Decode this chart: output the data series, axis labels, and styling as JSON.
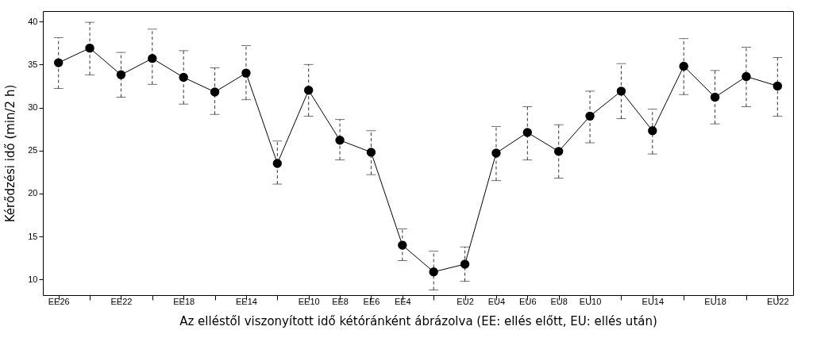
{
  "chart_data": {
    "type": "line",
    "xlabel": "Az elléstől viszonyított idő kétóránként ábrázolva (EE: ellés előtt, EU: ellés után)",
    "ylabel": "Kérődzési idő (min/2 h)",
    "categories": [
      "EE26",
      null,
      "EE22",
      null,
      "EE18",
      null,
      "EE14",
      null,
      "EE10",
      "EE8",
      "EE6",
      "EE4",
      null,
      "EU2",
      "EU4",
      "EU6",
      "EU8",
      "EU10",
      null,
      "EU14",
      null,
      "EU18",
      null,
      "EU22"
    ],
    "series": [
      {
        "color": "#000000",
        "values": [
          35.2,
          36.9,
          33.8,
          35.7,
          33.5,
          31.8,
          34.0,
          23.5,
          32.0,
          26.2,
          24.8,
          14.0,
          10.9,
          11.8,
          24.7,
          27.1,
          24.9,
          29.0,
          31.9,
          27.3,
          34.8,
          31.2,
          33.6,
          32.5
        ],
        "errors": [
          [
            32.2,
            38.1
          ],
          [
            33.8,
            39.9
          ],
          [
            31.2,
            36.4
          ],
          [
            32.7,
            39.1
          ],
          [
            30.4,
            36.6
          ],
          [
            29.2,
            34.6
          ],
          [
            30.9,
            37.2
          ],
          [
            21.1,
            26.1
          ],
          [
            29.0,
            35.0
          ],
          [
            23.9,
            28.6
          ],
          [
            22.2,
            27.3
          ],
          [
            12.2,
            15.9
          ],
          [
            8.8,
            13.3
          ],
          [
            9.8,
            13.8
          ],
          [
            21.5,
            27.8
          ],
          [
            23.9,
            30.1
          ],
          [
            21.8,
            28.0
          ],
          [
            25.9,
            31.9
          ],
          [
            28.7,
            35.1
          ],
          [
            24.6,
            29.8
          ],
          [
            31.5,
            38.0
          ],
          [
            28.1,
            34.3
          ],
          [
            30.1,
            37.0
          ],
          [
            29.0,
            35.8
          ]
        ]
      }
    ],
    "ylim": [
      8.2,
      41.2
    ],
    "yticks": [
      10,
      15,
      20,
      25,
      30,
      35,
      40
    ],
    "grid": false,
    "marker": "circle",
    "line_style": "solid"
  }
}
